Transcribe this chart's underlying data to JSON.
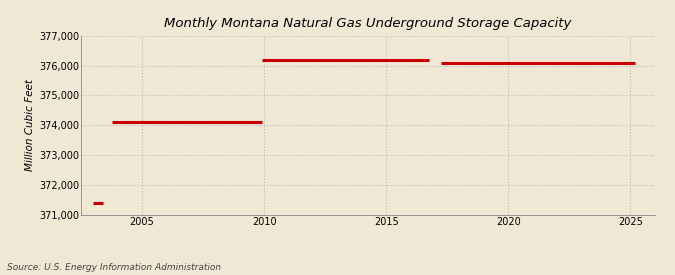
{
  "title": "Monthly Montana Natural Gas Underground Storage Capacity",
  "ylabel": "Million Cubic Feet",
  "source": "Source: U.S. Energy Information Administration",
  "background_color": "#f0e8d5",
  "plot_bg_color": "#f0e8d5",
  "line_color": "#cc0000",
  "grid_color": "#bbbbbb",
  "ylim": [
    371000,
    377000
  ],
  "xlim": [
    2002.5,
    2026.0
  ],
  "yticks": [
    371000,
    372000,
    373000,
    374000,
    375000,
    376000,
    377000
  ],
  "xticks": [
    2005,
    2010,
    2015,
    2020,
    2025
  ],
  "segments": [
    {
      "x_start": 2003.0,
      "x_end": 2003.4,
      "y": 371400
    },
    {
      "x_start": 2003.75,
      "x_end": 2009.92,
      "y": 374100
    },
    {
      "x_start": 2009.92,
      "x_end": 2016.75,
      "y": 376200
    },
    {
      "x_start": 2017.25,
      "x_end": 2025.2,
      "y": 376100
    }
  ],
  "title_fontsize": 9.5,
  "tick_fontsize": 7,
  "ylabel_fontsize": 7.5,
  "source_fontsize": 6.5,
  "linewidth": 2.2
}
